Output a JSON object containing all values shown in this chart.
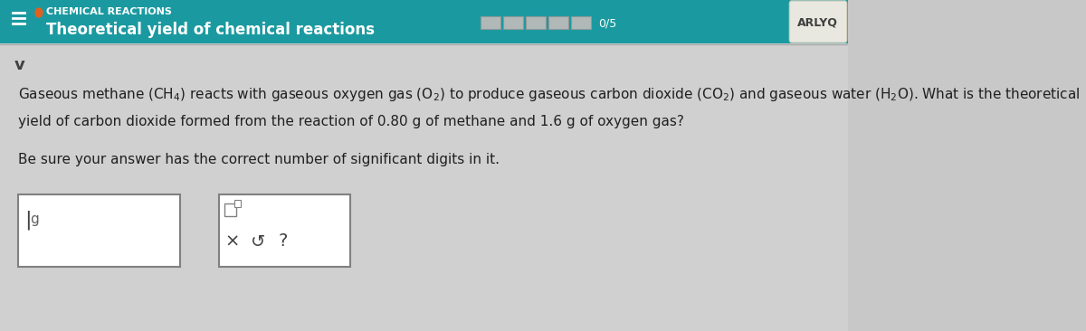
{
  "bg_color": "#c8c8c8",
  "header_bg": "#1a9aa0",
  "header_text_color": "#ffffff",
  "header_orange_dot": "#e06020",
  "header_label": "CHEMICAL REACTIONS",
  "header_title": "Theoretical yield of chemical reactions",
  "progress_text": "0/5",
  "avatar_text": "ARLYQ",
  "avatar_bg": "#e8e8e0",
  "avatar_text_color": "#404040",
  "body_bg": "#d0d0d0",
  "body_text_color": "#202020",
  "question_line1": "Gaseous methane (CH₄) reacts with gaseous oxygen gas (O₂) to produce gaseous carbon dioxide (CO₂) and gaseous water (H₂O). What is the theoretical",
  "question_line2": "yield of carbon dioxide formed from the reaction of 0.80 g of methane and 1.6 g of oxygen gas?",
  "instruction": "Be sure your answer has the correct number of significant digits in it.",
  "input_box_label": "g",
  "progress_bar_color": "#b0b8b8",
  "progress_segments": 5,
  "progress_filled": 0
}
